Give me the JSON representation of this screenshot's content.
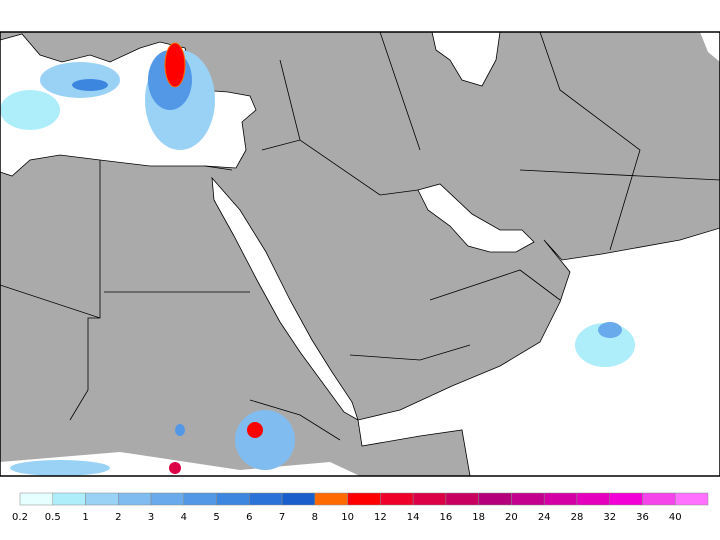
{
  "colorbar": {
    "levels": [
      0.2,
      0.5,
      1,
      2,
      3,
      4,
      5,
      6,
      7,
      8,
      10,
      12,
      14,
      16,
      18,
      20,
      24,
      28,
      32,
      36,
      40
    ],
    "colors": [
      "#e6ffff",
      "#aeeefa",
      "#9ad2f6",
      "#80bcf0",
      "#68aaec",
      "#5298e6",
      "#3c86e0",
      "#2a72d8",
      "#1a5ecc",
      "#ff6a00",
      "#ff0000",
      "#ee0028",
      "#dc0046",
      "#c80060",
      "#b4007a",
      "#c4008e",
      "#d400a6",
      "#e400bc",
      "#f200d6",
      "#f444ea",
      "#ff70ff"
    ]
  }
}
